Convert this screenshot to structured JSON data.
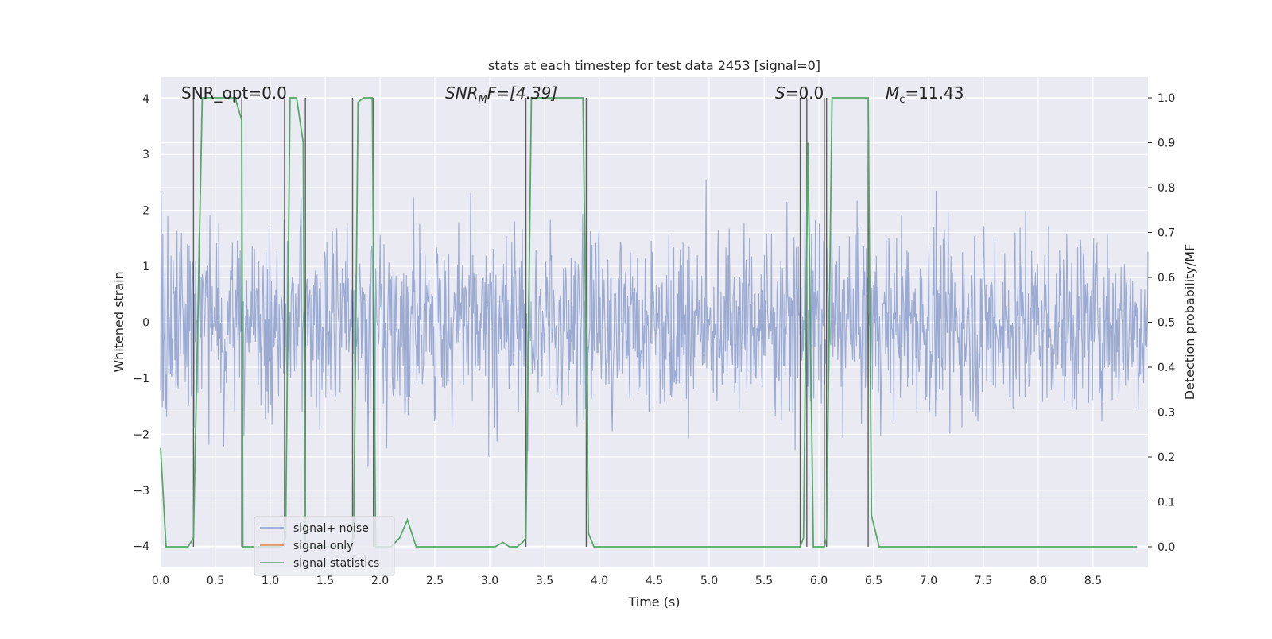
{
  "chart_data": {
    "type": "line",
    "title": "stats at each timestep for test data 2453 [signal=0]",
    "xlabel": "Time (s)",
    "ylabel_left": "Whitened strain",
    "ylabel_right": "Detection probability/MF",
    "xlim": [
      0,
      9.0
    ],
    "ylim_left": [
      -4.38,
      4.38
    ],
    "ylim_right": [
      -0.046,
      1.046
    ],
    "x_ticks": [
      "0.0",
      "0.5",
      "1.0",
      "1.5",
      "2.0",
      "2.5",
      "3.0",
      "3.5",
      "4.0",
      "4.5",
      "5.0",
      "5.5",
      "6.0",
      "6.5",
      "7.0",
      "7.5",
      "8.0",
      "8.5"
    ],
    "y_ticks_left": [
      "4",
      "3",
      "2",
      "1",
      "0",
      "−1",
      "−2",
      "−3",
      "−4"
    ],
    "y_ticks_right": [
      "1.0",
      "0.9",
      "0.8",
      "0.7",
      "0.6",
      "0.5",
      "0.4",
      "0.3",
      "0.2",
      "0.1",
      "0.0"
    ],
    "grid": true,
    "legend_position": "lower-left",
    "annotations": {
      "snr_opt": "SNR_opt=0.0",
      "snr_mf_main": "SNR",
      "snr_mf_sub": "M",
      "snr_mf_rest": "F=[4.39]",
      "s_label": "S",
      "s_rest": "=0.0",
      "mc_main": "M",
      "mc_sub": "c",
      "mc_rest": "=11.43"
    },
    "series": [
      {
        "name": "signal+ noise",
        "color": "#8c9fcc",
        "description_level": "gaussian noise, typical amplitude about 1.6, peaks up to about 3.6"
      },
      {
        "name": "signal only",
        "color": "#dd8452",
        "values": []
      },
      {
        "name": "signal statistics",
        "color": "#55a868",
        "x": [
          0.0,
          0.05,
          0.25,
          0.3,
          0.38,
          0.68,
          0.74,
          0.75,
          0.83,
          1.1,
          1.14,
          1.18,
          1.24,
          1.3,
          1.32,
          1.38,
          1.72,
          1.76,
          1.8,
          1.85,
          1.93,
          1.96,
          2.0,
          2.1,
          2.18,
          2.25,
          2.33,
          2.6,
          2.75,
          2.92,
          3.0,
          3.05,
          3.12,
          3.18,
          3.25,
          3.3,
          3.33,
          3.38,
          3.85,
          3.9,
          3.95,
          4.5,
          5.0,
          5.5,
          5.75,
          5.83,
          5.86,
          5.9,
          5.95,
          6.02,
          6.05,
          6.07,
          6.12,
          6.45,
          6.48,
          6.55,
          6.6,
          7.0,
          8.0,
          8.6,
          8.8,
          8.9
        ],
        "values": [
          0.22,
          0.0,
          0.0,
          0.02,
          1.0,
          1.0,
          0.95,
          0.0,
          0.0,
          0.0,
          0.02,
          1.0,
          1.0,
          0.9,
          0.0,
          0.0,
          0.0,
          0.02,
          0.99,
          1.0,
          1.0,
          0.0,
          0.0,
          0.0,
          0.02,
          0.06,
          0.0,
          0.0,
          0.0,
          0.0,
          0.0,
          0.0,
          0.01,
          0.0,
          0.0,
          0.01,
          0.02,
          1.0,
          1.0,
          0.03,
          0.0,
          0.0,
          0.0,
          0.0,
          0.0,
          0.0,
          0.02,
          0.9,
          0.0,
          0.0,
          0.0,
          0.02,
          1.0,
          1.0,
          0.07,
          0.0,
          0.0,
          0.0,
          0.0,
          0.0,
          0.0,
          0.0
        ]
      }
    ],
    "vertical_markers_x": [
      0.3,
      0.74,
      1.13,
      1.32,
      1.75,
      1.94,
      3.33,
      3.88,
      5.83,
      5.89,
      6.05,
      6.07,
      6.45
    ]
  }
}
